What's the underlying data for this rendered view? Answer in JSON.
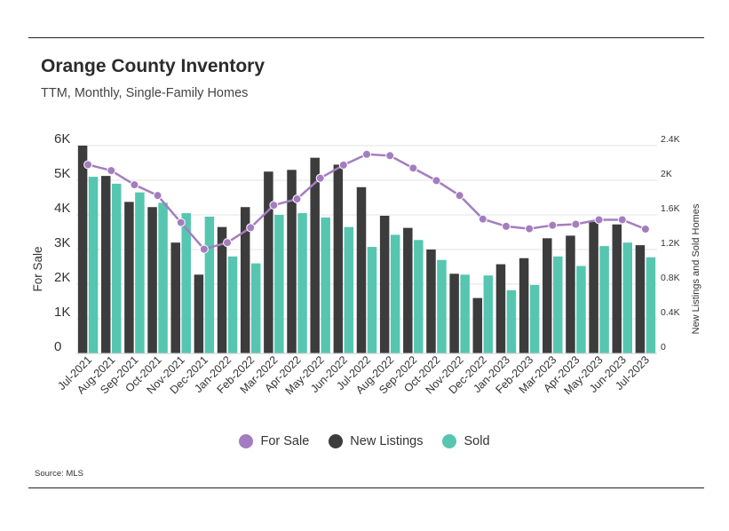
{
  "header": {
    "title": "Orange County Inventory",
    "subtitle": "TTM, Monthly, Single-Family Homes"
  },
  "footer": {
    "source": "Source: MLS"
  },
  "colors": {
    "for_sale": "#a47dc0",
    "new_listings": "#3c3c3c",
    "sold": "#56c6b0",
    "grid": "#e3e3e3"
  },
  "chart_data": {
    "type": "bar",
    "title": "Orange County Inventory",
    "subtitle": "TTM, Monthly, Single-Family Homes",
    "categories": [
      "Jul-2021",
      "Aug-2021",
      "Sep-2021",
      "Oct-2021",
      "Nov-2021",
      "Dec-2021",
      "Jan-2022",
      "Feb-2022",
      "Mar-2022",
      "Apr-2022",
      "May-2022",
      "Jun-2022",
      "Jul-2022",
      "Aug-2022",
      "Sep-2022",
      "Oct-2022",
      "Nov-2022",
      "Dec-2022",
      "Jan-2023",
      "Feb-2023",
      "Mar-2023",
      "Apr-2023",
      "May-2023",
      "Jun-2023",
      "Jul-2023"
    ],
    "left_axis": {
      "label": "For Sale",
      "ylim": [
        0,
        6000
      ],
      "ticks": [
        0,
        1000,
        2000,
        3000,
        4000,
        5000,
        6000
      ],
      "tick_labels": [
        "0",
        "1K",
        "2K",
        "3K",
        "4K",
        "5K",
        "6K"
      ]
    },
    "right_axis": {
      "label": "New Listings and Sold Homes",
      "ylim": [
        0,
        2400
      ],
      "ticks": [
        0,
        400,
        800,
        1200,
        1600,
        2000,
        2400
      ],
      "tick_labels": [
        "0",
        "0.4K",
        "0.8K",
        "1.2K",
        "1.6K",
        "2K",
        "2.4K"
      ]
    },
    "series": [
      {
        "name": "For Sale",
        "type": "line",
        "axis": "left",
        "values": [
          5450,
          5280,
          4870,
          4560,
          3780,
          3010,
          3200,
          3630,
          4280,
          4460,
          5060,
          5440,
          5750,
          5710,
          5350,
          4990,
          4560,
          3880,
          3670,
          3600,
          3700,
          3730,
          3860,
          3860,
          3590
        ]
      },
      {
        "name": "New Listings",
        "type": "bar",
        "axis": "right",
        "values": [
          2400,
          2050,
          1750,
          1690,
          1280,
          910,
          1460,
          1690,
          2100,
          2120,
          2260,
          2180,
          1920,
          1590,
          1450,
          1200,
          920,
          640,
          1030,
          1100,
          1330,
          1360,
          1520,
          1490,
          1250
        ]
      },
      {
        "name": "Sold",
        "type": "bar",
        "axis": "right",
        "values": [
          2040,
          1960,
          1860,
          1740,
          1620,
          1580,
          1120,
          1040,
          1600,
          1620,
          1570,
          1460,
          1230,
          1370,
          1310,
          1080,
          910,
          900,
          730,
          790,
          1120,
          1010,
          1240,
          1280,
          1110
        ]
      }
    ],
    "legend": {
      "position": "bottom-center",
      "entries": [
        "For Sale",
        "New Listings",
        "Sold"
      ]
    },
    "grid": true
  }
}
